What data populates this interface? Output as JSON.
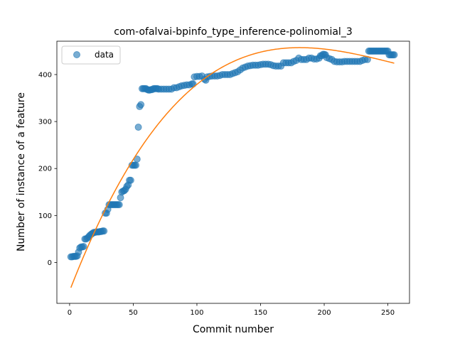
{
  "chart_data": {
    "type": "scatter",
    "title": "com-ofalvai-bpinfo_type_inference-polinomial_3",
    "xlabel": "Commit number",
    "ylabel": "Number of instance of a feature",
    "xlim": [
      -10,
      267
    ],
    "ylim": [
      -87,
      471
    ],
    "x_ticks": [
      0,
      50,
      100,
      150,
      200,
      250
    ],
    "y_ticks": [
      0,
      100,
      200,
      300,
      400
    ],
    "grid": false,
    "legend": {
      "position": "top-left",
      "entries": [
        "data"
      ]
    },
    "colors": {
      "data": "#1f77b4",
      "fit": "#ff7f0e"
    },
    "series": [
      {
        "name": "data",
        "kind": "scatter",
        "points": [
          [
            1,
            12
          ],
          [
            2,
            12
          ],
          [
            3,
            13
          ],
          [
            4,
            13
          ],
          [
            5,
            13
          ],
          [
            6,
            14
          ],
          [
            7,
            22
          ],
          [
            8,
            31
          ],
          [
            9,
            33
          ],
          [
            10,
            33
          ],
          [
            11,
            34
          ],
          [
            12,
            50
          ],
          [
            13,
            50
          ],
          [
            14,
            52
          ],
          [
            15,
            55
          ],
          [
            16,
            58
          ],
          [
            17,
            60
          ],
          [
            18,
            62
          ],
          [
            19,
            64
          ],
          [
            20,
            64
          ],
          [
            21,
            65
          ],
          [
            22,
            65
          ],
          [
            23,
            65
          ],
          [
            24,
            66
          ],
          [
            25,
            66
          ],
          [
            26,
            67
          ],
          [
            27,
            67
          ],
          [
            28,
            105
          ],
          [
            29,
            105
          ],
          [
            30,
            113
          ],
          [
            31,
            123
          ],
          [
            32,
            123
          ],
          [
            33,
            123
          ],
          [
            34,
            123
          ],
          [
            35,
            123
          ],
          [
            36,
            123
          ],
          [
            37,
            123
          ],
          [
            38,
            123
          ],
          [
            39,
            123
          ],
          [
            40,
            138
          ],
          [
            41,
            150
          ],
          [
            42,
            152
          ],
          [
            43,
            153
          ],
          [
            44,
            156
          ],
          [
            45,
            162
          ],
          [
            46,
            165
          ],
          [
            47,
            175
          ],
          [
            48,
            175
          ],
          [
            49,
            207
          ],
          [
            50,
            207
          ],
          [
            51,
            207
          ],
          [
            52,
            207
          ],
          [
            53,
            220
          ],
          [
            54,
            288
          ],
          [
            55,
            332
          ],
          [
            56,
            336
          ],
          [
            57,
            370
          ],
          [
            58,
            370
          ],
          [
            59,
            370
          ],
          [
            60,
            370
          ],
          [
            61,
            368
          ],
          [
            62,
            367
          ],
          [
            63,
            367
          ],
          [
            64,
            368
          ],
          [
            65,
            368
          ],
          [
            66,
            370
          ],
          [
            67,
            370
          ],
          [
            68,
            370
          ],
          [
            69,
            370
          ],
          [
            70,
            369
          ],
          [
            72,
            369
          ],
          [
            74,
            369
          ],
          [
            76,
            369
          ],
          [
            78,
            369
          ],
          [
            80,
            369
          ],
          [
            82,
            372
          ],
          [
            84,
            372
          ],
          [
            86,
            374
          ],
          [
            88,
            376
          ],
          [
            90,
            377
          ],
          [
            92,
            378
          ],
          [
            94,
            378
          ],
          [
            96,
            380
          ],
          [
            97,
            380
          ],
          [
            98,
            395
          ],
          [
            100,
            396
          ],
          [
            102,
            396
          ],
          [
            104,
            397
          ],
          [
            106,
            390
          ],
          [
            107,
            388
          ],
          [
            108,
            395
          ],
          [
            110,
            396
          ],
          [
            112,
            397
          ],
          [
            114,
            397
          ],
          [
            116,
            397
          ],
          [
            118,
            398
          ],
          [
            120,
            400
          ],
          [
            122,
            400
          ],
          [
            124,
            400
          ],
          [
            126,
            400
          ],
          [
            128,
            402
          ],
          [
            130,
            404
          ],
          [
            132,
            406
          ],
          [
            134,
            410
          ],
          [
            136,
            414
          ],
          [
            138,
            416
          ],
          [
            140,
            418
          ],
          [
            142,
            419
          ],
          [
            144,
            420
          ],
          [
            146,
            420
          ],
          [
            148,
            420
          ],
          [
            150,
            421
          ],
          [
            152,
            422
          ],
          [
            154,
            422
          ],
          [
            156,
            422
          ],
          [
            158,
            421
          ],
          [
            160,
            419
          ],
          [
            162,
            418
          ],
          [
            164,
            418
          ],
          [
            166,
            418
          ],
          [
            168,
            425
          ],
          [
            170,
            425
          ],
          [
            172,
            425
          ],
          [
            174,
            425
          ],
          [
            176,
            428
          ],
          [
            178,
            430
          ],
          [
            180,
            435
          ],
          [
            182,
            432
          ],
          [
            184,
            432
          ],
          [
            186,
            432
          ],
          [
            188,
            435
          ],
          [
            190,
            435
          ],
          [
            192,
            433
          ],
          [
            194,
            433
          ],
          [
            196,
            435
          ],
          [
            197,
            440
          ],
          [
            198,
            440
          ],
          [
            199,
            443
          ],
          [
            200,
            443
          ],
          [
            201,
            442
          ],
          [
            202,
            436
          ],
          [
            204,
            434
          ],
          [
            206,
            432
          ],
          [
            208,
            428
          ],
          [
            210,
            427
          ],
          [
            212,
            427
          ],
          [
            214,
            427
          ],
          [
            216,
            428
          ],
          [
            218,
            428
          ],
          [
            220,
            428
          ],
          [
            222,
            428
          ],
          [
            224,
            428
          ],
          [
            226,
            428
          ],
          [
            228,
            428
          ],
          [
            230,
            430
          ],
          [
            232,
            432
          ],
          [
            234,
            432
          ],
          [
            235,
            450
          ],
          [
            236,
            450
          ],
          [
            237,
            450
          ],
          [
            238,
            450
          ],
          [
            239,
            450
          ],
          [
            240,
            450
          ],
          [
            241,
            450
          ],
          [
            242,
            450
          ],
          [
            243,
            450
          ],
          [
            244,
            450
          ],
          [
            245,
            450
          ],
          [
            246,
            450
          ],
          [
            247,
            450
          ],
          [
            248,
            450
          ],
          [
            249,
            450
          ],
          [
            250,
            450
          ],
          [
            251,
            442
          ],
          [
            252,
            442
          ],
          [
            253,
            442
          ],
          [
            254,
            442
          ],
          [
            255,
            442
          ]
        ]
      },
      {
        "kind": "line",
        "polynomial_coefficients": [
          -60.5,
          6.99,
          -0.0298,
          3.86e-05
        ],
        "x_range": [
          1,
          255
        ]
      }
    ]
  }
}
